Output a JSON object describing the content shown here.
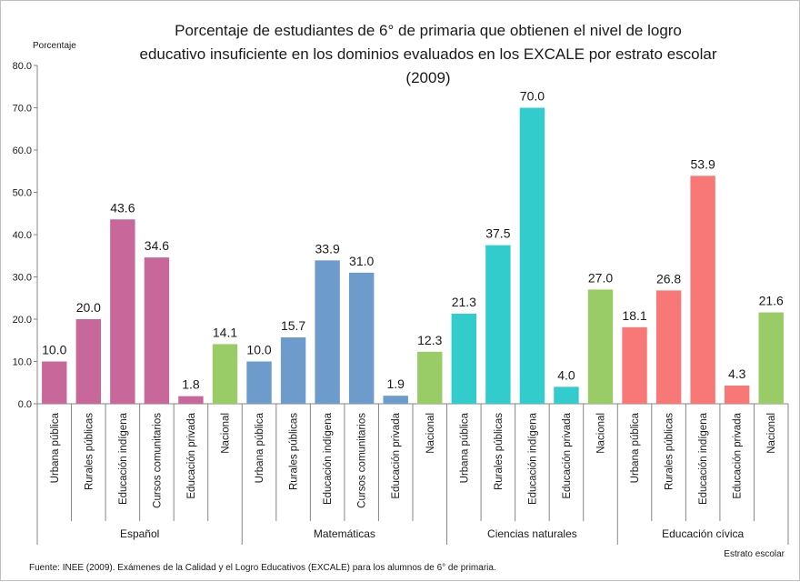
{
  "chart_data": {
    "type": "bar",
    "title_lines": [
      "Porcentaje de estudiantes de 6° de primaria que obtienen el nivel de logro",
      "educativo insuficiente en los dominios evaluados en los EXCALE por estrato escolar",
      "(2009)"
    ],
    "ylabel": "Porcentaje",
    "xlabel": "Estrato escolar",
    "ylim": [
      0,
      80
    ],
    "yticks": [
      "0.0",
      "10.0",
      "20.0",
      "30.0",
      "40.0",
      "50.0",
      "60.0",
      "70.0",
      "80.0"
    ],
    "grid": false,
    "groups": [
      {
        "name": "Español",
        "color": "#c8689a",
        "bars": [
          {
            "label": "Urbana pública",
            "value": 10.0,
            "value_label": "10.0"
          },
          {
            "label": "Rurales públicas",
            "value": 20.0,
            "value_label": "20.0"
          },
          {
            "label": "Educación indígena",
            "value": 43.6,
            "value_label": "43.6"
          },
          {
            "label": "Cursos comunitarios",
            "value": 34.6,
            "value_label": "34.6"
          },
          {
            "label": "Educación privada",
            "value": 1.8,
            "value_label": "1.8"
          },
          {
            "label": "Nacional",
            "value": 14.1,
            "value_label": "14.1"
          }
        ]
      },
      {
        "name": "Matemáticas",
        "color": "#6c9bcc",
        "bars": [
          {
            "label": "Urbana pública",
            "value": 10.0,
            "value_label": "10.0"
          },
          {
            "label": "Rurales públicas",
            "value": 15.7,
            "value_label": "15.7"
          },
          {
            "label": "Educación indígena",
            "value": 33.9,
            "value_label": "33.9"
          },
          {
            "label": "Cursos comunitarios",
            "value": 31.0,
            "value_label": "31.0"
          },
          {
            "label": "Educación privada",
            "value": 1.9,
            "value_label": "1.9"
          },
          {
            "label": "Nacional",
            "value": 12.3,
            "value_label": "12.3"
          }
        ]
      },
      {
        "name": "Ciencias naturales",
        "color": "#33cccc",
        "bars": [
          {
            "label": "Urbana pública",
            "value": 21.3,
            "value_label": "21.3"
          },
          {
            "label": "Rurales públicas",
            "value": 37.5,
            "value_label": "37.5"
          },
          {
            "label": "Educación indígena",
            "value": 70.0,
            "value_label": "70.0"
          },
          {
            "label": "Educación privada",
            "value": 4.0,
            "value_label": "4.0"
          },
          {
            "label": "Nacional",
            "value": 27.0,
            "value_label": "27.0"
          }
        ]
      },
      {
        "name": "Educación cívica",
        "color": "#f87878",
        "bars": [
          {
            "label": "Urbana pública",
            "value": 18.1,
            "value_label": "18.1"
          },
          {
            "label": "Rurales públicas",
            "value": 26.8,
            "value_label": "26.8"
          },
          {
            "label": "Educación indígena",
            "value": 53.9,
            "value_label": "53.9"
          },
          {
            "label": "Educación privada",
            "value": 4.3,
            "value_label": "4.3"
          },
          {
            "label": "Nacional",
            "value": 21.6,
            "value_label": "21.6"
          }
        ]
      }
    ],
    "nacional_color": "#99cc66",
    "source": "Fuente: INEE (2009). Exámenes de la Calidad y el Logro Educativos (EXCALE) para los alumnos de 6° de primaria."
  }
}
